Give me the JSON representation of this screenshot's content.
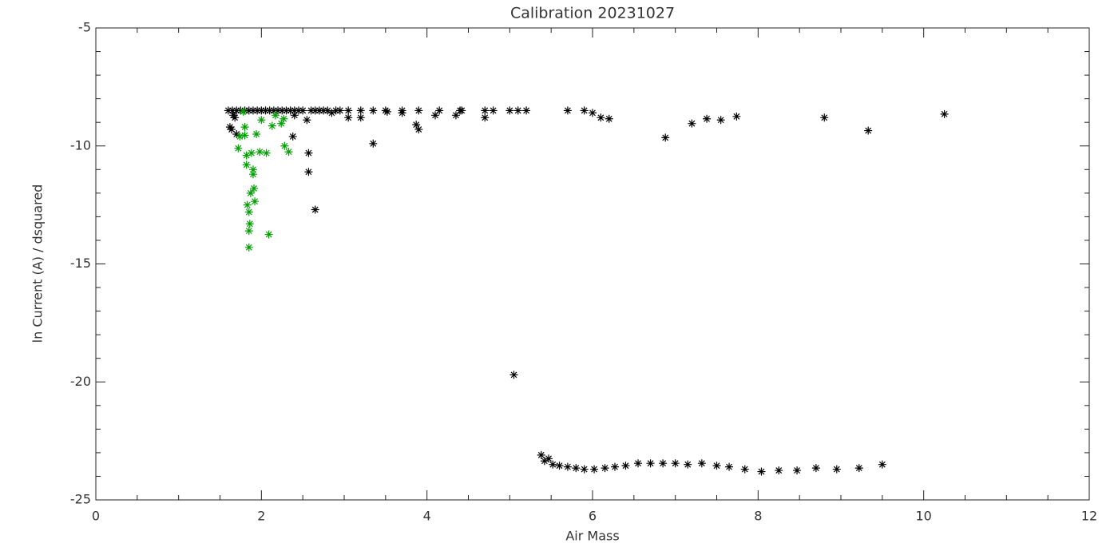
{
  "chart_data": {
    "type": "scatter",
    "title": "Calibration 20231027",
    "x_label": "Air Mass",
    "y_label": "ln Current (A) / dsquared",
    "xlim": [
      0,
      12
    ],
    "xticks": [
      0,
      2,
      4,
      6,
      8,
      10,
      12
    ],
    "xminor": 4,
    "ylim": [
      -25,
      -5
    ],
    "yticks": [
      -25,
      -20,
      -15,
      -10,
      -5
    ],
    "yminor": 5,
    "series": [
      {
        "color": "#000000",
        "x": [
          1.6,
          1.65,
          1.7,
          1.75,
          1.8,
          1.85,
          1.9,
          1.95,
          2.0,
          2.05,
          2.1,
          2.15,
          2.2,
          2.25,
          2.3,
          2.35,
          2.4,
          2.45,
          2.5,
          2.6,
          2.65,
          2.7,
          2.75,
          2.8,
          2.9,
          2.95,
          3.05,
          3.2,
          3.35,
          3.5,
          3.7,
          3.9,
          4.15,
          4.4,
          4.7,
          4.8,
          5.0,
          5.1,
          5.2,
          5.7,
          5.9,
          1.62,
          1.64,
          1.66,
          1.68,
          1.7,
          2.4,
          2.38,
          2.55,
          2.57,
          2.57,
          2.65,
          2.85,
          3.05,
          3.2,
          3.35,
          3.52,
          3.7,
          3.87,
          3.9,
          4.1,
          4.35,
          4.42,
          4.7,
          5.05,
          6.0,
          6.1,
          6.2,
          6.88,
          7.2,
          7.38,
          7.55,
          7.74,
          8.8,
          9.33,
          10.25,
          5.38,
          5.42,
          5.47,
          5.52,
          5.6,
          5.7,
          5.8,
          5.9,
          6.02,
          6.15,
          6.27,
          6.4,
          6.55,
          6.7,
          6.85,
          7.0,
          7.15,
          7.32,
          7.5,
          7.65,
          7.84,
          8.04,
          8.25,
          8.47,
          8.7,
          8.95,
          9.22,
          9.5
        ],
        "values": [
          -8.5,
          -8.5,
          -8.5,
          -8.5,
          -8.5,
          -8.5,
          -8.5,
          -8.5,
          -8.5,
          -8.5,
          -8.5,
          -8.5,
          -8.5,
          -8.5,
          -8.5,
          -8.5,
          -8.5,
          -8.5,
          -8.5,
          -8.5,
          -8.5,
          -8.5,
          -8.5,
          -8.5,
          -8.5,
          -8.5,
          -8.5,
          -8.5,
          -8.5,
          -8.5,
          -8.5,
          -8.5,
          -8.5,
          -8.5,
          -8.5,
          -8.5,
          -8.5,
          -8.5,
          -8.5,
          -8.5,
          -8.5,
          -9.2,
          -9.3,
          -8.7,
          -8.8,
          -9.5,
          -8.7,
          -9.6,
          -8.9,
          -10.3,
          -11.1,
          -12.7,
          -8.6,
          -8.8,
          -8.8,
          -9.9,
          -8.55,
          -8.6,
          -9.1,
          -9.3,
          -8.7,
          -8.7,
          -8.5,
          -8.8,
          -19.7,
          -8.6,
          -8.8,
          -8.85,
          -9.65,
          -9.05,
          -8.85,
          -8.9,
          -8.75,
          -8.8,
          -9.35,
          -8.65,
          -23.1,
          -23.35,
          -23.25,
          -23.5,
          -23.55,
          -23.6,
          -23.65,
          -23.7,
          -23.7,
          -23.65,
          -23.6,
          -23.55,
          -23.45,
          -23.45,
          -23.45,
          -23.45,
          -23.5,
          -23.45,
          -23.55,
          -23.6,
          -23.7,
          -23.8,
          -23.75,
          -23.75,
          -23.65,
          -23.7,
          -23.65,
          -23.5
        ]
      },
      {
        "color": "#00a000",
        "x": [
          1.72,
          1.74,
          1.78,
          1.8,
          1.82,
          1.82,
          1.83,
          1.85,
          1.85,
          1.85,
          1.86,
          1.88,
          1.9,
          1.91,
          1.92,
          1.94,
          1.98,
          2.0,
          2.06,
          2.09,
          2.13,
          2.17,
          2.24,
          2.28,
          2.33,
          2.27,
          1.8,
          1.87,
          1.9
        ],
        "values": [
          -10.1,
          -9.6,
          -8.55,
          -9.2,
          -10.4,
          -10.8,
          -12.5,
          -12.8,
          -13.6,
          -14.3,
          -13.3,
          -10.3,
          -11.0,
          -11.8,
          -12.35,
          -9.5,
          -10.25,
          -8.9,
          -10.3,
          -13.75,
          -9.15,
          -8.7,
          -9.05,
          -10.0,
          -10.25,
          -8.85,
          -9.55,
          -12.0,
          -11.2
        ]
      }
    ]
  }
}
